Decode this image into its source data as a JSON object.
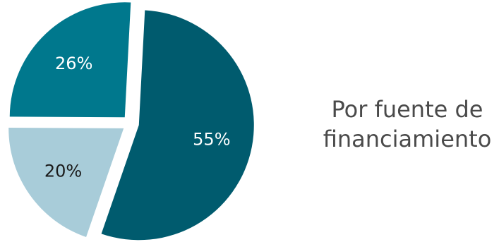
{
  "chart_data": {
    "type": "pie",
    "title": "Por fuente de financiamiento",
    "title_lines": [
      "Por fuente de",
      "financiamiento"
    ],
    "slices": [
      {
        "label": "55%",
        "value": 55,
        "color": "#005b6e"
      },
      {
        "label": "20%",
        "value": 20,
        "color": "#a8ccd9"
      },
      {
        "label": "26%",
        "value": 26,
        "color": "#00788d"
      }
    ],
    "start_angle_deg": 3,
    "exploded": true,
    "label_colors": {
      "dark": "#ffffff",
      "light": "#1a1a1a"
    }
  }
}
